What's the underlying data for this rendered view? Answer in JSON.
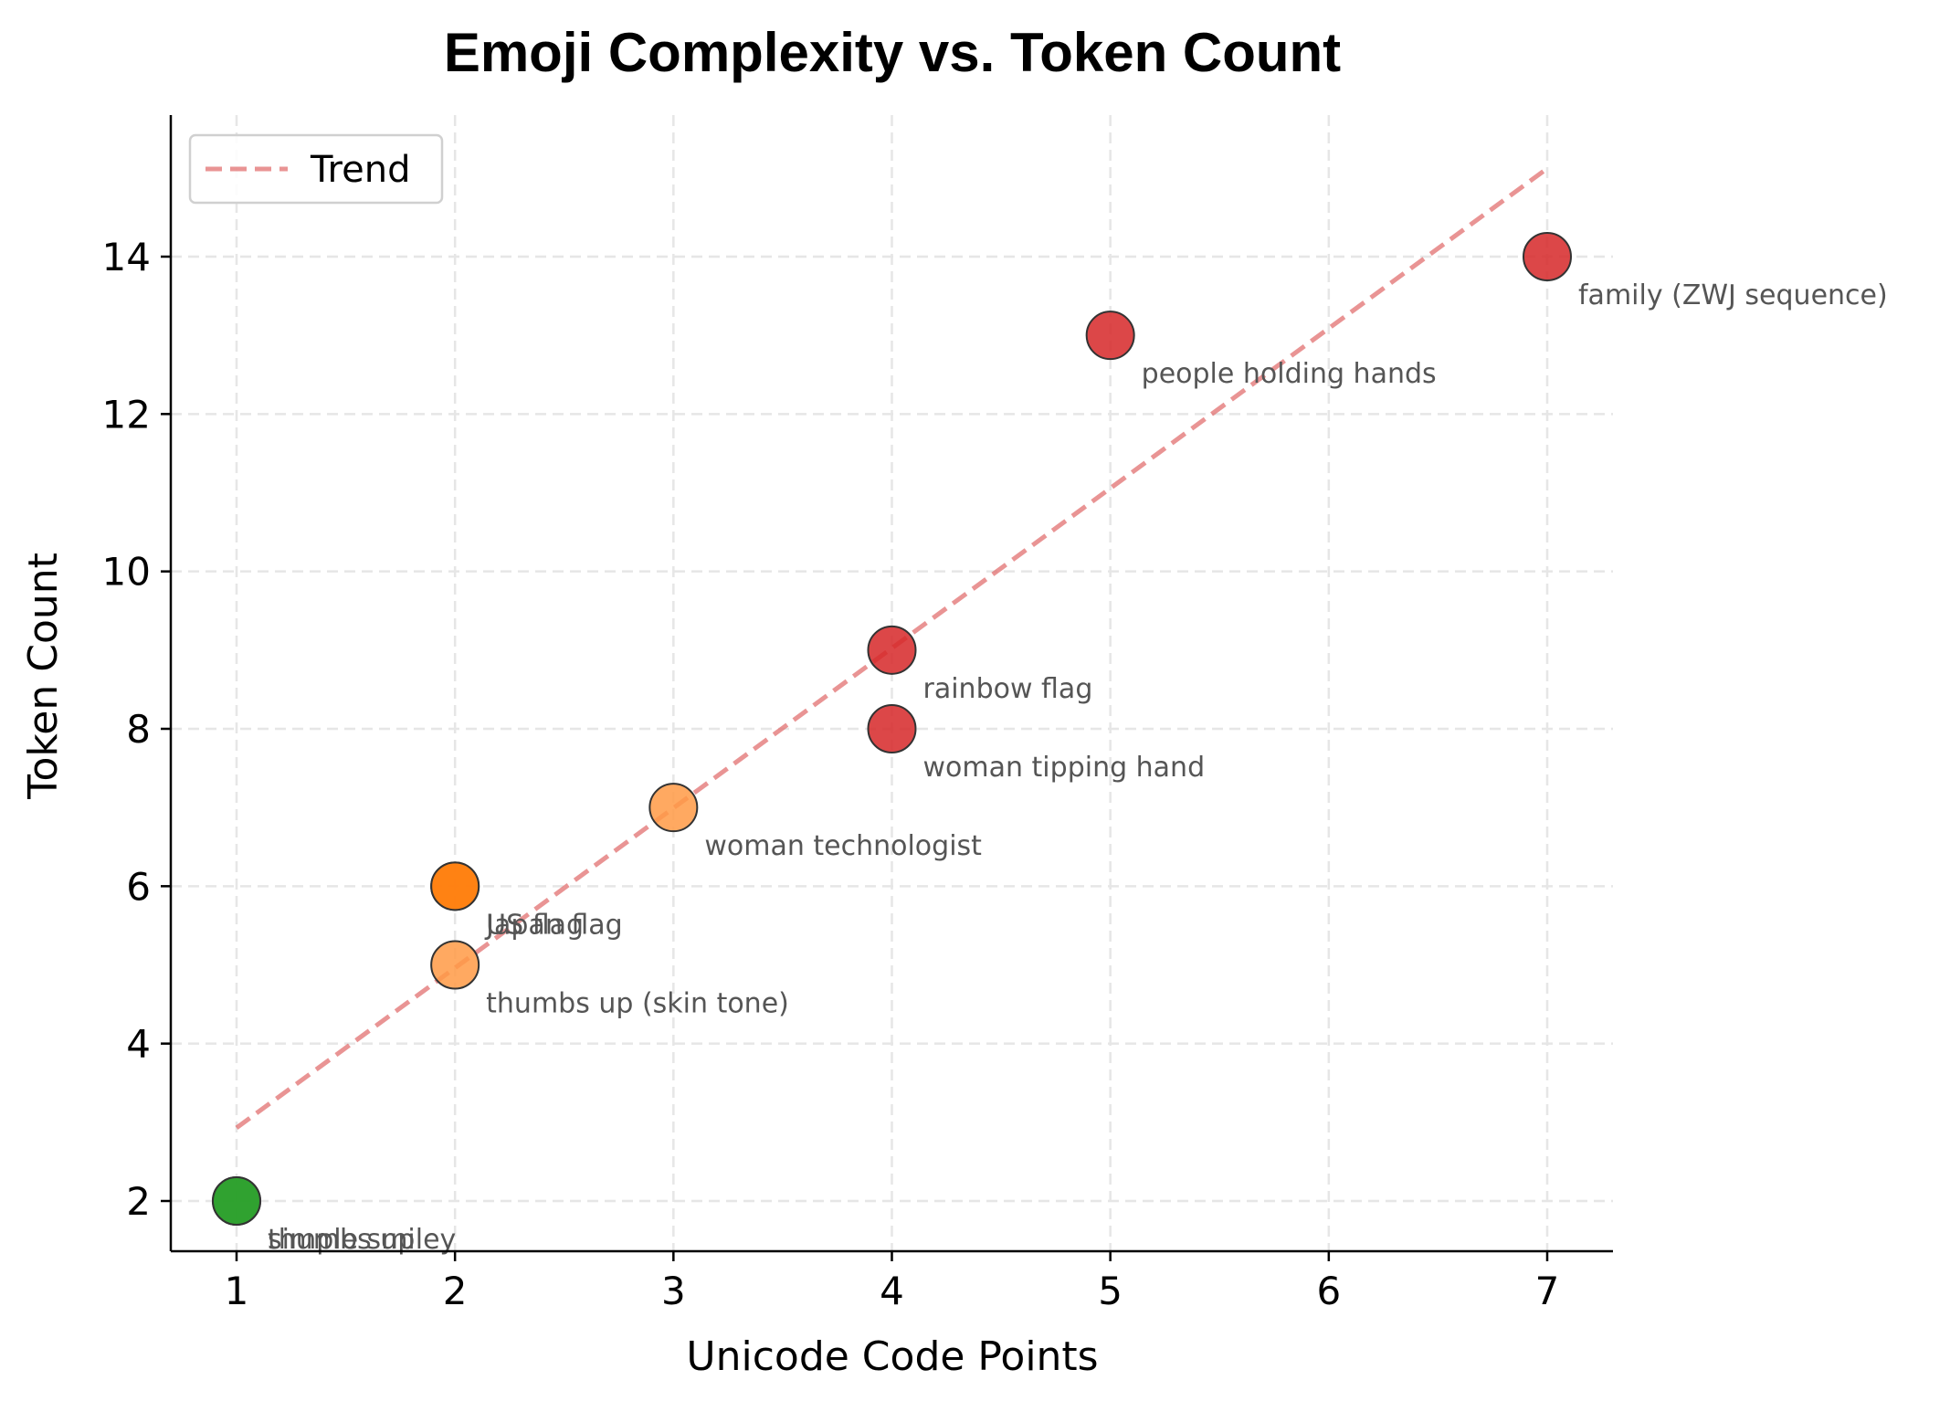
{
  "chart_data": {
    "type": "scatter",
    "title": "Emoji Complexity vs. Token Count",
    "xlabel": "Unicode Code Points",
    "ylabel": "Token Count",
    "xlim": [
      0.7,
      7.3
    ],
    "ylim": [
      1.35,
      15.8
    ],
    "xticks": [
      1,
      2,
      3,
      4,
      5,
      6,
      7
    ],
    "yticks": [
      2,
      4,
      6,
      8,
      10,
      12,
      14
    ],
    "grid": true,
    "legend": {
      "position": "upper left",
      "entries": [
        "Trend"
      ]
    },
    "points": [
      {
        "label": "simple smiley",
        "x": 1,
        "y": 2,
        "color": "#2ca02c"
      },
      {
        "label": "thumbs up",
        "x": 1,
        "y": 2,
        "color": "#2ca02c"
      },
      {
        "label": "US flag",
        "x": 2,
        "y": 6,
        "color": "#ff7f0e"
      },
      {
        "label": "Japan flag",
        "x": 2,
        "y": 6,
        "color": "#ff7f0e"
      },
      {
        "label": "thumbs up (skin tone)",
        "x": 2,
        "y": 5,
        "color": "#ff9a45"
      },
      {
        "label": "woman technologist",
        "x": 3,
        "y": 7,
        "color": "#ff9a45"
      },
      {
        "label": "woman tipping hand",
        "x": 4,
        "y": 8,
        "color": "#d62728"
      },
      {
        "label": "rainbow flag",
        "x": 4,
        "y": 9,
        "color": "#d62728"
      },
      {
        "label": "people holding hands",
        "x": 5,
        "y": 13,
        "color": "#d62728"
      },
      {
        "label": "family (ZWJ sequence)",
        "x": 7,
        "y": 14,
        "color": "#d62728"
      }
    ],
    "trend": {
      "name": "Trend",
      "style": "dashed",
      "color": "#e06666",
      "x": [
        1,
        7
      ],
      "y": [
        2.93,
        15.12
      ]
    }
  }
}
